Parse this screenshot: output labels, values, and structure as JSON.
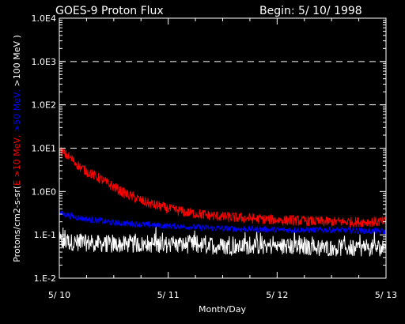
{
  "chart_data": {
    "type": "line",
    "title": "GOES-9 Proton Flux",
    "subtitle": "Begin: 5/ 10/ 1998",
    "xlabel": "Month/Day",
    "ylabel_parts": [
      {
        "text": "Protons/cm2-s-sr(",
        "color": "#ffffff"
      },
      {
        "text": "E >10 MeV,",
        "color": "#ff0000"
      },
      {
        "text": " >50 MeV,",
        "color": "#0000ff"
      },
      {
        "text": " >100 MeV )",
        "color": "#ffffff"
      }
    ],
    "y_scale": "log",
    "ylim": [
      0.01,
      10000
    ],
    "x_days": [
      0,
      3
    ],
    "x_ticks": [
      "5/ 10",
      "5/ 11",
      "5/ 12",
      "5/ 13"
    ],
    "y_ticks": [
      "1.0E4",
      "1.0E3",
      "1.0E2",
      "1.0E1",
      "1.0E0",
      "1.E-1",
      "1.E-2"
    ],
    "grid": "dashed at 1.0E1 through 1.0E4",
    "series": [
      {
        "color": "#ff0000",
        "x": [
          0,
          0.1,
          0.2,
          0.4,
          0.6,
          0.8,
          1.0,
          1.2,
          1.5,
          2.0,
          2.5,
          3.0
        ],
        "values": [
          9,
          6,
          3.5,
          1.8,
          0.9,
          0.55,
          0.4,
          0.32,
          0.26,
          0.22,
          0.2,
          0.2
        ]
      },
      {
        "color": "#0000ff",
        "x": [
          0,
          0.2,
          0.5,
          1.0,
          1.5,
          2.0,
          2.5,
          3.0
        ],
        "values": [
          0.32,
          0.24,
          0.19,
          0.16,
          0.14,
          0.13,
          0.13,
          0.12
        ]
      },
      {
        "color": "#ffffff",
        "x": [
          0,
          0.5,
          1.0,
          1.5,
          2.0,
          2.5,
          3.0
        ],
        "values": [
          0.07,
          0.06,
          0.06,
          0.055,
          0.055,
          0.05,
          0.05
        ]
      }
    ]
  }
}
